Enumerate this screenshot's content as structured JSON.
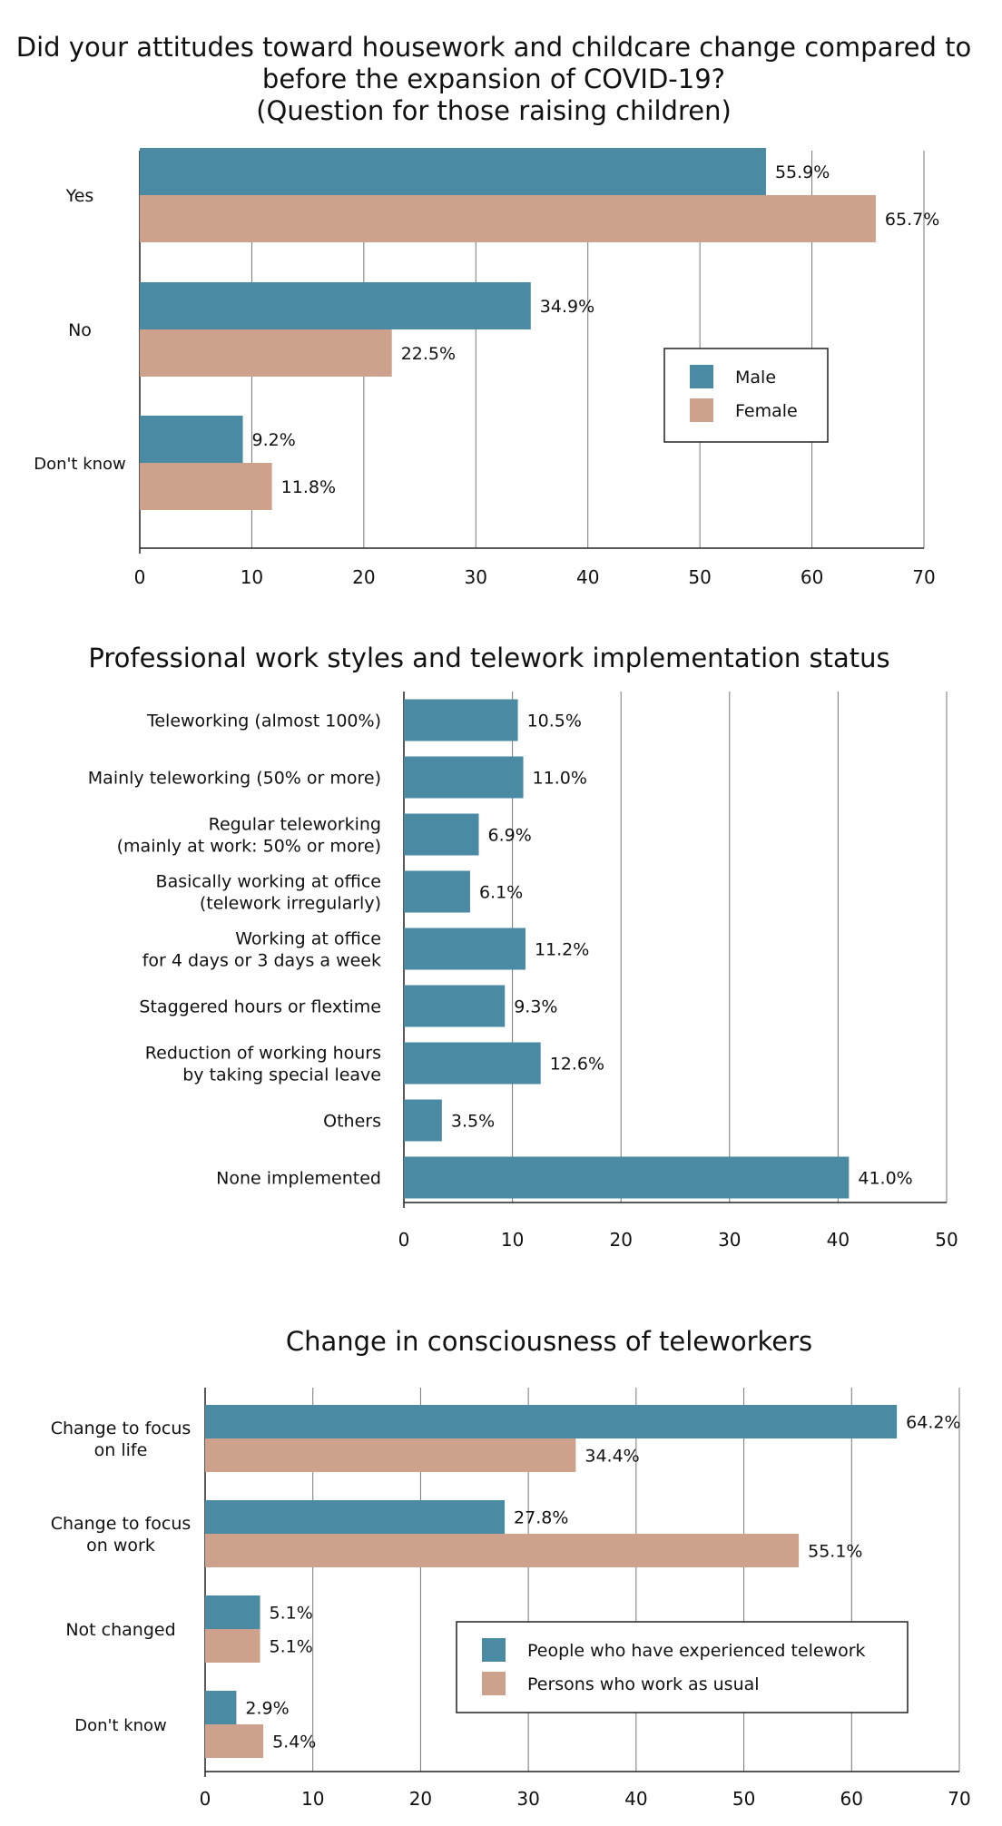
{
  "colors": {
    "series_a": "#4b8aa3",
    "series_b": "#cda18b",
    "grid": "#777777",
    "axis": "#222222"
  },
  "chart_data": [
    {
      "type": "bar",
      "orientation": "horizontal",
      "title_lines": [
        "Did your attitudes toward housework and childcare change compared to",
        "before the expansion of COVID-19?",
        "(Question for those raising children)"
      ],
      "categories": [
        "Yes",
        "No",
        "Don't know"
      ],
      "series": [
        {
          "name": "Male",
          "values": [
            55.9,
            34.9,
            9.2
          ],
          "labels": [
            "55.9%",
            "34.9%",
            "9.2%"
          ]
        },
        {
          "name": "Female",
          "values": [
            65.7,
            22.5,
            11.8
          ],
          "labels": [
            "65.7%",
            "22.5%",
            "11.8%"
          ]
        }
      ],
      "xlim": [
        0,
        70
      ],
      "xticks": [
        "0",
        "10",
        "20",
        "30",
        "40",
        "50",
        "60",
        "70"
      ],
      "grid": true,
      "legend_position": "middle-right"
    },
    {
      "type": "bar",
      "orientation": "horizontal",
      "title_lines": [
        "Professional work styles and telework implementation status"
      ],
      "categories": [
        [
          "Teleworking (almost 100%)"
        ],
        [
          "Mainly teleworking (50% or more)"
        ],
        [
          "Regular teleworking",
          "(mainly at work: 50% or more)"
        ],
        [
          "Basically working at office",
          "(telework irregularly)"
        ],
        [
          "Working at office",
          "for 4 days or 3 days a week"
        ],
        [
          "Staggered hours or flextime"
        ],
        [
          "Reduction of working hours",
          "by taking special leave"
        ],
        [
          "Others"
        ],
        [
          "None implemented"
        ]
      ],
      "series": [
        {
          "values": [
            10.5,
            11.0,
            6.9,
            6.1,
            11.2,
            9.3,
            12.6,
            3.5,
            41.0
          ],
          "labels": [
            "10.5%",
            "11.0%",
            "6.9%",
            "6.1%",
            "11.2%",
            "9.3%",
            "12.6%",
            "3.5%",
            "41.0%"
          ]
        }
      ],
      "xlim": [
        0,
        50
      ],
      "xticks": [
        "0",
        "10",
        "20",
        "30",
        "40",
        "50"
      ],
      "grid": true
    },
    {
      "type": "bar",
      "orientation": "horizontal",
      "title_lines": [
        "Change in consciousness of teleworkers"
      ],
      "categories": [
        [
          "Change to focus",
          "on life"
        ],
        [
          "Change to focus",
          "on work"
        ],
        [
          "Not changed"
        ],
        [
          "Don't know"
        ]
      ],
      "series": [
        {
          "name": "People who have experienced telework",
          "values": [
            64.2,
            27.8,
            5.1,
            2.9
          ],
          "labels": [
            "64.2%",
            "27.8%",
            "5.1%",
            "2.9%"
          ]
        },
        {
          "name": "Persons who work as usual",
          "values": [
            34.4,
            55.1,
            5.1,
            5.4
          ],
          "labels": [
            "34.4%",
            "55.1%",
            "5.1%",
            "5.4%"
          ]
        }
      ],
      "xlim": [
        0,
        70
      ],
      "xticks": [
        "0",
        "10",
        "20",
        "30",
        "40",
        "50",
        "60",
        "70"
      ],
      "grid": true,
      "legend_position": "bottom-right"
    }
  ]
}
